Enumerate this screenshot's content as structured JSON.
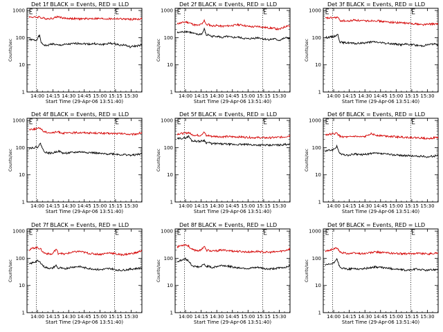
{
  "chart_data": [
    {
      "type": "line",
      "title": "Det 1f BLACK = Events, RED = LLD",
      "xlabel": "Start Time (29-Apr-06 13:51:40)",
      "ylabel": "Counts/sec",
      "xticks": [
        "14:00",
        "14:15",
        "14:30",
        "14:45",
        "15:00",
        "15:15",
        "15:30"
      ],
      "yticks": [
        "1",
        "10",
        "100",
        "1000"
      ],
      "x_minutes": [
        -8,
        -1,
        0,
        2,
        4,
        6,
        9,
        14,
        20,
        25,
        30,
        35,
        40,
        45,
        50,
        55,
        60,
        65,
        70,
        75,
        79,
        80,
        83,
        86,
        89,
        92,
        96,
        99,
        101
      ],
      "series": [
        {
          "name": "BLACK",
          "color": "#000000",
          "values": [
            85,
            80,
            95,
            120,
            60,
            55,
            50,
            60,
            52,
            55,
            57,
            60,
            62,
            60,
            58,
            60,
            55,
            58,
            62,
            58,
            55,
            52,
            55,
            50,
            45,
            48,
            50,
            52,
            55
          ]
        },
        {
          "name": "RED",
          "color": "#d40000",
          "values": [
            580,
            560,
            560,
            600,
            520,
            520,
            500,
            510,
            600,
            520,
            510,
            500,
            490,
            495,
            500,
            505,
            500,
            495,
            490,
            500,
            495,
            490,
            485,
            480,
            470,
            475,
            480,
            490,
            500
          ]
        }
      ]
    },
    {
      "type": "line",
      "title": "Det 2f BLACK = Events, RED = LLD",
      "xlabel": "Start Time (29-Apr-06 13:51:40)",
      "ylabel": "Counts/sec",
      "xticks": [
        "14:00",
        "14:15",
        "14:30",
        "14:45",
        "15:00",
        "15:15",
        "15:30"
      ],
      "yticks": [
        "1",
        "10",
        "100",
        "1000"
      ],
      "x_minutes": [
        -8,
        -4,
        0,
        4,
        8,
        12,
        16,
        18,
        20,
        22,
        25,
        30,
        35,
        40,
        45,
        50,
        55,
        60,
        65,
        70,
        75,
        80,
        85,
        90,
        95,
        98,
        101
      ],
      "series": [
        {
          "name": "BLACK",
          "color": "#000000",
          "values": [
            150,
            160,
            170,
            160,
            140,
            130,
            140,
            210,
            120,
            130,
            110,
            115,
            100,
            110,
            100,
            105,
            95,
            90,
            95,
            100,
            90,
            85,
            90,
            80,
            95,
            100,
            85
          ]
        },
        {
          "name": "RED",
          "color": "#d40000",
          "values": [
            330,
            350,
            380,
            350,
            300,
            280,
            320,
            450,
            290,
            310,
            270,
            280,
            260,
            270,
            280,
            300,
            290,
            260,
            250,
            260,
            240,
            230,
            220,
            200,
            250,
            280,
            260
          ]
        }
      ]
    },
    {
      "type": "line",
      "title": "Det 3f BLACK = Events, RED = LLD",
      "xlabel": "Start Time (29-Apr-06 13:51:40)",
      "ylabel": "Counts/sec",
      "xticks": [
        "14:00",
        "14:15",
        "14:30",
        "14:45",
        "15:00",
        "15:15",
        "15:30"
      ],
      "yticks": [
        "1",
        "10",
        "100",
        "1000"
      ],
      "x_minutes": [
        -8,
        -4,
        0,
        4,
        6,
        9,
        14,
        20,
        25,
        30,
        35,
        40,
        45,
        50,
        55,
        60,
        65,
        70,
        75,
        80,
        85,
        90,
        95,
        101
      ],
      "series": [
        {
          "name": "BLACK",
          "color": "#000000",
          "values": [
            100,
            105,
            110,
            130,
            70,
            65,
            65,
            60,
            62,
            65,
            68,
            70,
            65,
            62,
            60,
            58,
            55,
            58,
            55,
            52,
            50,
            55,
            58,
            55
          ]
        },
        {
          "name": "RED",
          "color": "#d40000",
          "values": [
            520,
            530,
            540,
            560,
            420,
            420,
            400,
            450,
            420,
            410,
            420,
            430,
            400,
            380,
            370,
            360,
            350,
            340,
            330,
            320,
            300,
            310,
            320,
            310
          ]
        }
      ]
    },
    {
      "type": "line",
      "title": "Det 4f BLACK = Events, RED = LLD",
      "xlabel": "Start Time (29-Apr-06 13:51:40)",
      "ylabel": "Counts/sec",
      "xticks": [
        "14:00",
        "14:15",
        "14:30",
        "14:45",
        "15:00",
        "15:15",
        "15:30"
      ],
      "yticks": [
        "1",
        "10",
        "100",
        "1000"
      ],
      "x_minutes": [
        -8,
        -4,
        0,
        3,
        6,
        9,
        14,
        20,
        25,
        30,
        35,
        40,
        45,
        50,
        55,
        60,
        65,
        70,
        75,
        80,
        85,
        90,
        95,
        101
      ],
      "series": [
        {
          "name": "BLACK",
          "color": "#000000",
          "values": [
            95,
            100,
            105,
            140,
            75,
            65,
            62,
            75,
            62,
            64,
            66,
            70,
            68,
            66,
            64,
            60,
            58,
            60,
            58,
            55,
            55,
            52,
            55,
            60
          ]
        },
        {
          "name": "RED",
          "color": "#d40000",
          "values": [
            470,
            480,
            500,
            520,
            390,
            370,
            350,
            380,
            340,
            345,
            350,
            360,
            355,
            350,
            345,
            340,
            335,
            330,
            330,
            325,
            320,
            300,
            320,
            360
          ]
        }
      ]
    },
    {
      "type": "line",
      "title": "Det 5f BLACK = Events, RED = LLD",
      "xlabel": "Start Time (29-Apr-06 13:51:40)",
      "ylabel": "Counts/sec",
      "xticks": [
        "14:00",
        "14:15",
        "14:30",
        "14:45",
        "15:00",
        "15:15",
        "15:30"
      ],
      "yticks": [
        "1",
        "10",
        "100",
        "1000"
      ],
      "x_minutes": [
        -8,
        -4,
        0,
        3,
        6,
        9,
        14,
        18,
        20,
        22,
        25,
        30,
        35,
        40,
        45,
        50,
        55,
        60,
        65,
        70,
        75,
        80,
        85,
        90,
        95,
        101
      ],
      "series": [
        {
          "name": "BLACK",
          "color": "#000000",
          "values": [
            210,
            220,
            230,
            260,
            180,
            175,
            170,
            185,
            150,
            155,
            140,
            140,
            135,
            135,
            130,
            130,
            130,
            130,
            125,
            125,
            125,
            120,
            125,
            125,
            130,
            140
          ]
        },
        {
          "name": "RED",
          "color": "#d40000",
          "values": [
            320,
            330,
            340,
            360,
            300,
            290,
            280,
            370,
            270,
            280,
            260,
            260,
            250,
            255,
            250,
            250,
            245,
            240,
            235,
            235,
            230,
            230,
            235,
            240,
            250,
            280
          ]
        }
      ]
    },
    {
      "type": "line",
      "title": "Det 6f BLACK = Events, RED = LLD",
      "xlabel": "Start Time (29-Apr-06 13:51:40)",
      "ylabel": "Counts/sec",
      "xticks": [
        "14:00",
        "14:15",
        "14:30",
        "14:45",
        "15:00",
        "15:15",
        "15:30"
      ],
      "yticks": [
        "1",
        "10",
        "100",
        "1000"
      ],
      "x_minutes": [
        -8,
        -4,
        0,
        3,
        6,
        9,
        14,
        20,
        25,
        30,
        35,
        40,
        45,
        50,
        55,
        60,
        65,
        70,
        75,
        80,
        85,
        90,
        95,
        101
      ],
      "series": [
        {
          "name": "BLACK",
          "color": "#000000",
          "values": [
            75,
            80,
            85,
            110,
            60,
            55,
            52,
            58,
            55,
            56,
            60,
            62,
            60,
            58,
            55,
            54,
            52,
            50,
            50,
            48,
            48,
            46,
            48,
            52
          ]
        },
        {
          "name": "RED",
          "color": "#d40000",
          "values": [
            300,
            310,
            320,
            340,
            260,
            250,
            240,
            260,
            245,
            250,
            330,
            290,
            280,
            270,
            260,
            250,
            245,
            240,
            235,
            230,
            225,
            220,
            225,
            240
          ]
        }
      ]
    },
    {
      "type": "line",
      "title": "Det 7f BLACK = Events, RED = LLD",
      "xlabel": "Start Time (29-Apr-06 13:51:40)",
      "ylabel": "Counts/sec",
      "xticks": [
        "14:00",
        "14:15",
        "14:30",
        "14:45",
        "15:00",
        "15:15",
        "15:30"
      ],
      "yticks": [
        "1",
        "10",
        "100",
        "1000"
      ],
      "x_minutes": [
        -8,
        -4,
        0,
        3,
        6,
        9,
        14,
        18,
        20,
        22,
        25,
        30,
        35,
        40,
        45,
        50,
        55,
        60,
        65,
        70,
        75,
        80,
        85,
        90,
        95,
        101
      ],
      "series": [
        {
          "name": "BLACK",
          "color": "#000000",
          "values": [
            60,
            70,
            80,
            70,
            50,
            45,
            42,
            55,
            42,
            45,
            40,
            45,
            48,
            50,
            45,
            42,
            40,
            38,
            40,
            42,
            38,
            36,
            38,
            40,
            42,
            45
          ]
        },
        {
          "name": "RED",
          "color": "#d40000",
          "values": [
            200,
            240,
            250,
            220,
            160,
            150,
            140,
            220,
            150,
            160,
            140,
            155,
            170,
            180,
            165,
            150,
            145,
            140,
            150,
            160,
            145,
            135,
            140,
            150,
            160,
            200
          ]
        }
      ]
    },
    {
      "type": "line",
      "title": "Det 8f BLACK = Events, RED = LLD",
      "xlabel": "Start Time (29-Apr-06 13:51:40)",
      "ylabel": "Counts/sec",
      "xticks": [
        "14:00",
        "14:15",
        "14:30",
        "14:45",
        "15:00",
        "15:15",
        "15:30"
      ],
      "yticks": [
        "1",
        "10",
        "100",
        "1000"
      ],
      "x_minutes": [
        -8,
        -4,
        0,
        3,
        6,
        9,
        14,
        18,
        20,
        22,
        25,
        30,
        35,
        40,
        45,
        50,
        55,
        60,
        65,
        70,
        75,
        80,
        85,
        90,
        95,
        101
      ],
      "series": [
        {
          "name": "BLACK",
          "color": "#000000",
          "values": [
            75,
            85,
            95,
            80,
            55,
            50,
            48,
            60,
            50,
            52,
            45,
            50,
            55,
            52,
            48,
            45,
            44,
            42,
            44,
            46,
            42,
            40,
            42,
            44,
            46,
            55
          ]
        },
        {
          "name": "RED",
          "color": "#d40000",
          "values": [
            260,
            300,
            320,
            280,
            210,
            200,
            190,
            280,
            190,
            200,
            180,
            190,
            200,
            195,
            185,
            180,
            175,
            170,
            175,
            180,
            170,
            165,
            170,
            180,
            190,
            230
          ]
        }
      ]
    },
    {
      "type": "line",
      "title": "Det 9f BLACK = Events, RED = LLD",
      "xlabel": "Start Time (29-Apr-06 13:51:40)",
      "ylabel": "Counts/sec",
      "xticks": [
        "14:00",
        "14:15",
        "14:30",
        "14:45",
        "15:00",
        "15:15",
        "15:30"
      ],
      "yticks": [
        "1",
        "10",
        "100",
        "1000"
      ],
      "x_minutes": [
        -8,
        -4,
        0,
        3,
        6,
        9,
        14,
        20,
        25,
        30,
        35,
        40,
        45,
        50,
        55,
        60,
        65,
        70,
        75,
        80,
        85,
        90,
        95,
        101
      ],
      "series": [
        {
          "name": "BLACK",
          "color": "#000000",
          "values": [
            55,
            60,
            65,
            100,
            45,
            42,
            40,
            42,
            40,
            42,
            45,
            48,
            46,
            44,
            42,
            40,
            38,
            36,
            38,
            40,
            38,
            36,
            38,
            40
          ]
        },
        {
          "name": "RED",
          "color": "#d40000",
          "values": [
            180,
            200,
            220,
            240,
            170,
            160,
            150,
            155,
            150,
            150,
            160,
            170,
            165,
            160,
            155,
            150,
            148,
            145,
            150,
            155,
            150,
            145,
            150,
            160
          ]
        }
      ]
    }
  ]
}
